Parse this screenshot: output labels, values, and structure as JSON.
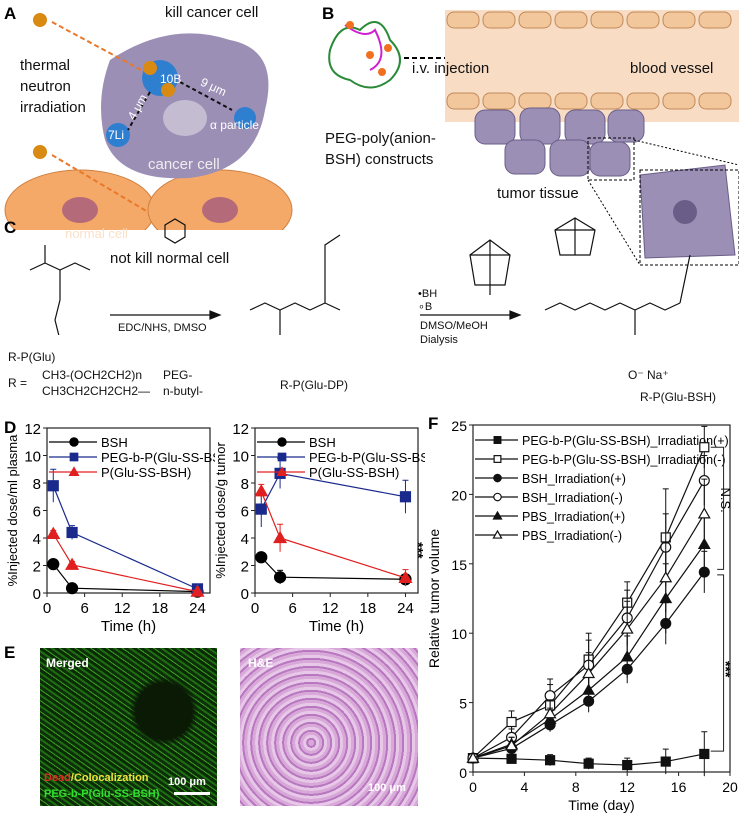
{
  "panels": {
    "A": {
      "label": "A",
      "title": "kill cancer cell",
      "neutron": [
        "thermal",
        "neutron",
        "irradiation"
      ],
      "boron": "10B",
      "lithium": "7Li",
      "dist_li": "4 μm",
      "dist_alpha": "9 μm",
      "alpha": "α particle",
      "cancer_cell": "cancer cell",
      "normal_cell": "normal cell",
      "bottom": "not kill normal cell"
    },
    "B": {
      "label": "B",
      "injection": "i.v. injection",
      "vessel": "blood vessel",
      "construct": [
        "PEG-poly(anion-",
        "BSH) constructs"
      ],
      "tumor": "tumor tissue"
    },
    "C": {
      "label": "C",
      "reactant": "R-P(Glu)",
      "r_def": "R =",
      "r1": "CH3-(OCH2CH2)n",
      "r1_name": "PEG-",
      "r2": "CH3CH2CH2CH2—",
      "r2_name": "n-butyl-",
      "step1": "EDC/NHS, DMSO",
      "intermediate": "R-P(Glu-DP)",
      "step2a": "DMSO/MeOH",
      "step2b": "Dialysis",
      "legend_bh": "•BH",
      "legend_b": "∘B",
      "product": "R-P(Glu-BSH)",
      "sodium": "O⁻ Na⁺"
    },
    "E": {
      "label": "E",
      "merged": "Merged",
      "caption1a": "Dead",
      "caption1b": "/Colocalization",
      "caption2": "PEG-b-P(Glu-SS-BSH)",
      "scale1": "100 μm",
      "he": "H&E",
      "scale2": "100 μm"
    }
  },
  "chart_data": [
    {
      "panel": "D",
      "type": "line",
      "xlabel": "Time (h)",
      "ylabel": "%Injected dose/ml plasma",
      "xlim": [
        0,
        26
      ],
      "ylim": [
        0,
        12
      ],
      "xticks": [
        0,
        6,
        12,
        18,
        24
      ],
      "yticks": [
        0,
        2,
        4,
        6,
        8,
        10,
        12
      ],
      "legend": "top-left",
      "x": [
        1,
        4,
        24
      ],
      "series": [
        {
          "name": "BSH",
          "color": "#000000",
          "marker": "circle",
          "values": [
            2.1,
            0.35,
            0.1
          ],
          "err": [
            0.3,
            0.1,
            0.05
          ]
        },
        {
          "name": "PEG-b-P(Glu-SS-BSH)",
          "color": "#1a2a8c",
          "marker": "square",
          "values": [
            7.8,
            4.4,
            0.3
          ],
          "err": [
            1.2,
            0.5,
            0.1
          ]
        },
        {
          "name": "P(Glu-SS-BSH)",
          "color": "#e02020",
          "marker": "triangle",
          "values": [
            4.3,
            2.05,
            0.1
          ],
          "err": [
            0.25,
            0.25,
            0.05
          ]
        }
      ]
    },
    {
      "panel": "D",
      "type": "line",
      "xlabel": "Time (h)",
      "ylabel": "%Injected dose/g tumor",
      "xlim": [
        0,
        26
      ],
      "ylim": [
        0,
        12
      ],
      "xticks": [
        0,
        6,
        12,
        18,
        24
      ],
      "yticks": [
        0,
        2,
        4,
        6,
        8,
        10,
        12
      ],
      "legend": "top-left",
      "annotation": "***",
      "x": [
        1,
        4,
        24
      ],
      "series": [
        {
          "name": "BSH",
          "color": "#000000",
          "marker": "circle",
          "values": [
            2.6,
            1.15,
            1.0
          ],
          "err": [
            0.2,
            0.5,
            0.3
          ]
        },
        {
          "name": "PEG-b-P(Glu-SS-BSH)",
          "color": "#1a2a8c",
          "marker": "square",
          "values": [
            6.1,
            8.7,
            7.0
          ],
          "err": [
            1.3,
            1.1,
            1.2
          ]
        },
        {
          "name": "P(Glu-SS-BSH)",
          "color": "#e02020",
          "marker": "triangle",
          "values": [
            7.4,
            4.0,
            1.1
          ],
          "err": [
            0.5,
            1.0,
            0.6
          ]
        }
      ]
    },
    {
      "panel": "F",
      "type": "line",
      "xlabel": "Time (day)",
      "ylabel": "Relative tumor volume",
      "xlim": [
        0,
        20
      ],
      "ylim": [
        0,
        25
      ],
      "xticks": [
        0,
        4,
        8,
        12,
        16,
        20
      ],
      "yticks": [
        0,
        5,
        10,
        15,
        20,
        25
      ],
      "legend": "top-left",
      "annotations": [
        "N.S.",
        "***"
      ],
      "x": [
        0,
        3,
        6,
        9,
        12,
        15,
        18
      ],
      "series": [
        {
          "name": "PEG-b-P(Glu-SS-BSH)_Irradiation(+)",
          "marker": "square",
          "filled": true,
          "values": [
            1,
            0.95,
            0.85,
            0.6,
            0.5,
            0.75,
            1.3
          ],
          "err": [
            0,
            0.2,
            0.4,
            0.4,
            0.5,
            0.9,
            1.6
          ]
        },
        {
          "name": "PEG-b-P(Glu-SS-BSH)_Irradiation(-)",
          "marker": "square",
          "filled": false,
          "values": [
            1,
            3.6,
            4.8,
            8.1,
            12.2,
            16.9,
            23.4
          ],
          "err": [
            0,
            0.8,
            1.5,
            1.9,
            1.5,
            3.5,
            1.5
          ]
        },
        {
          "name": "BSH_Irradiation(+)",
          "marker": "circle",
          "filled": true,
          "values": [
            1,
            1.7,
            3.4,
            5.1,
            7.4,
            10.7,
            14.4
          ],
          "err": [
            0,
            0.3,
            0.5,
            0.8,
            1.0,
            1.5,
            1.5
          ]
        },
        {
          "name": "BSH_Irradiation(-)",
          "marker": "circle",
          "filled": false,
          "values": [
            1,
            2.5,
            5.5,
            7.7,
            11.1,
            16.2,
            21.0
          ],
          "err": [
            0,
            0.6,
            1.2,
            1.8,
            2.0,
            2.4,
            1.8
          ]
        },
        {
          "name": "PBS_Irradiation(+)",
          "marker": "triangle",
          "filled": true,
          "values": [
            1,
            2.0,
            3.8,
            5.9,
            8.3,
            12.5,
            16.4
          ],
          "err": [
            0,
            0.5,
            0.8,
            1.2,
            1.5,
            2.5,
            2.2
          ]
        },
        {
          "name": "PBS_Irradiation(-)",
          "marker": "triangle",
          "filled": false,
          "values": [
            1,
            1.9,
            4.2,
            7.1,
            10.3,
            14.0,
            18.6
          ],
          "err": [
            0,
            0.6,
            1.0,
            1.5,
            2.0,
            2.5,
            2.5
          ]
        }
      ]
    }
  ]
}
